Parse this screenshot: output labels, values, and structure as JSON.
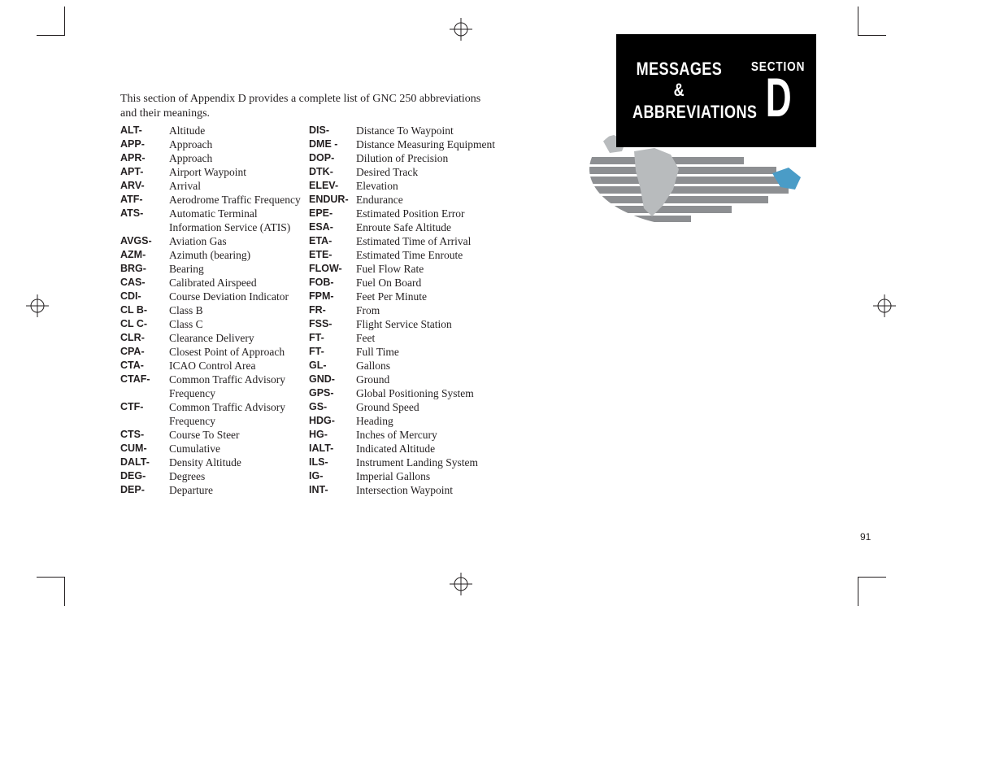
{
  "intro": "This section of Appendix D provides a complete list of GNC 250 abbreviations and their meanings.",
  "badge": {
    "line1": "MESSAGES &",
    "line2": "ABBREVIATIONS",
    "section_label": "SECTION",
    "section_letter": "D"
  },
  "page_number": "91",
  "col1": [
    {
      "abbr": "ALT-",
      "def": "Altitude"
    },
    {
      "abbr": "APP-",
      "def": "Approach"
    },
    {
      "abbr": "APR-",
      "def": "Approach"
    },
    {
      "abbr": "APT-",
      "def": "Airport Waypoint"
    },
    {
      "abbr": "ARV-",
      "def": "Arrival"
    },
    {
      "abbr": "ATF-",
      "def": "Aerodrome Traffic Frequency"
    },
    {
      "abbr": "ATS-",
      "def": "Automatic Terminal Information Service (ATIS)"
    },
    {
      "abbr": "AVGS-",
      "def": "Aviation Gas"
    },
    {
      "abbr": "AZM-",
      "def": "Azimuth (bearing)"
    },
    {
      "abbr": "BRG-",
      "def": "Bearing"
    },
    {
      "abbr": "CAS-",
      "def": "Calibrated Airspeed"
    },
    {
      "abbr": "CDI-",
      "def": "Course Deviation Indicator"
    },
    {
      "abbr": "CL B-",
      "def": "Class B"
    },
    {
      "abbr": "CL C-",
      "def": "Class C"
    },
    {
      "abbr": "CLR-",
      "def": "Clearance Delivery"
    },
    {
      "abbr": "CPA-",
      "def": "Closest Point of Approach"
    },
    {
      "abbr": "CTA-",
      "def": "ICAO Control Area"
    },
    {
      "abbr": "CTAF-",
      "def": "Common Traffic Advisory Frequency"
    },
    {
      "abbr": "CTF-",
      "def": "Common Traffic Advisory Frequency"
    },
    {
      "abbr": "CTS-",
      "def": "Course To Steer"
    },
    {
      "abbr": "CUM-",
      "def": "Cumulative"
    },
    {
      "abbr": "DALT-",
      "def": "Density Altitude"
    },
    {
      "abbr": "DEG-",
      "def": "Degrees"
    },
    {
      "abbr": "DEP-",
      "def": "Departure"
    }
  ],
  "col2": [
    {
      "abbr": "DIS-",
      "def": "Distance To Waypoint"
    },
    {
      "abbr": "DME -",
      "def": "Distance Measuring Equipment"
    },
    {
      "abbr": "DOP-",
      "def": "Dilution of Precision"
    },
    {
      "abbr": "DTK-",
      "def": "Desired Track"
    },
    {
      "abbr": "ELEV-",
      "def": "Elevation"
    },
    {
      "abbr": "ENDUR-",
      "def": "Endurance"
    },
    {
      "abbr": "EPE-",
      "def": "Estimated Position Error"
    },
    {
      "abbr": "ESA-",
      "def": "Enroute Safe Altitude"
    },
    {
      "abbr": "ETA-",
      "def": "Estimated Time of Arrival"
    },
    {
      "abbr": "ETE-",
      "def": "Estimated Time Enroute"
    },
    {
      "abbr": "FLOW-",
      "def": "Fuel Flow Rate"
    },
    {
      "abbr": "FOB-",
      "def": "Fuel On Board"
    },
    {
      "abbr": "FPM-",
      "def": "Feet Per Minute"
    },
    {
      "abbr": "FR-",
      "def": "From"
    },
    {
      "abbr": "FSS-",
      "def": "Flight Service Station"
    },
    {
      "abbr": "FT-",
      "def": "Feet"
    },
    {
      "abbr": "FT-",
      "def": "Full Time"
    },
    {
      "abbr": "GL-",
      "def": "Gallons"
    },
    {
      "abbr": "GND-",
      "def": "Ground"
    },
    {
      "abbr": "GPS-",
      "def": "Global Positioning System"
    },
    {
      "abbr": "GS-",
      "def": "Ground Speed"
    },
    {
      "abbr": "HDG-",
      "def": "Heading"
    },
    {
      "abbr": "HG-",
      "def": "Inches of Mercury"
    },
    {
      "abbr": "IALT-",
      "def": "Indicated Altitude"
    },
    {
      "abbr": "ILS-",
      "def": "Instrument Landing System"
    },
    {
      "abbr": "IG-",
      "def": "Imperial Gallons"
    },
    {
      "abbr": "INT-",
      "def": "Intersection Waypoint"
    }
  ]
}
